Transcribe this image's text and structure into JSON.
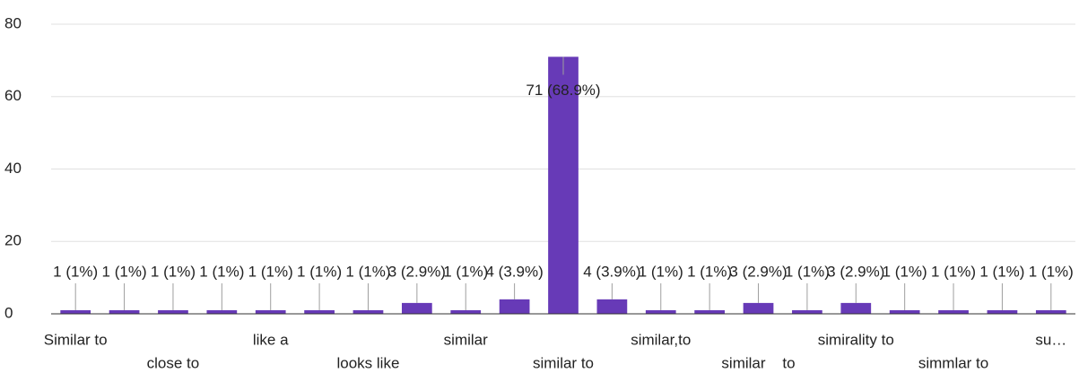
{
  "chart_data": {
    "type": "bar",
    "categories": [
      "Similar to",
      null,
      "close to",
      null,
      "like a",
      null,
      "looks like",
      null,
      "similar",
      null,
      "similar to",
      null,
      "similar,to",
      null,
      "similar    to",
      null,
      "simirality to",
      null,
      "simmlar to",
      null,
      "su…"
    ],
    "values": [
      1,
      1,
      1,
      1,
      1,
      1,
      1,
      3,
      1,
      4,
      71,
      4,
      1,
      1,
      3,
      1,
      3,
      1,
      1,
      1,
      1
    ],
    "value_labels": [
      "1 (1%)",
      "1 (1%)",
      "1 (1%)",
      "1 (1%)",
      "1 (1%)",
      "1 (1%)",
      "1 (1%)",
      "3 (2.9%)",
      "1 (1%)",
      "4 (3.9%)",
      "71 (68.9%)",
      "4 (3.9%)",
      "1 (1%)",
      "1 (1%)",
      "3 (2.9%)",
      "1 (1%)",
      "3 (2.9%)",
      "1 (1%)",
      "1 (1%)",
      "1 (1%)",
      "1 (1%)"
    ],
    "color": "#673ab7",
    "ylim": [
      0,
      80
    ],
    "yticks": [
      0,
      20,
      40,
      60,
      80
    ],
    "grid": true
  }
}
